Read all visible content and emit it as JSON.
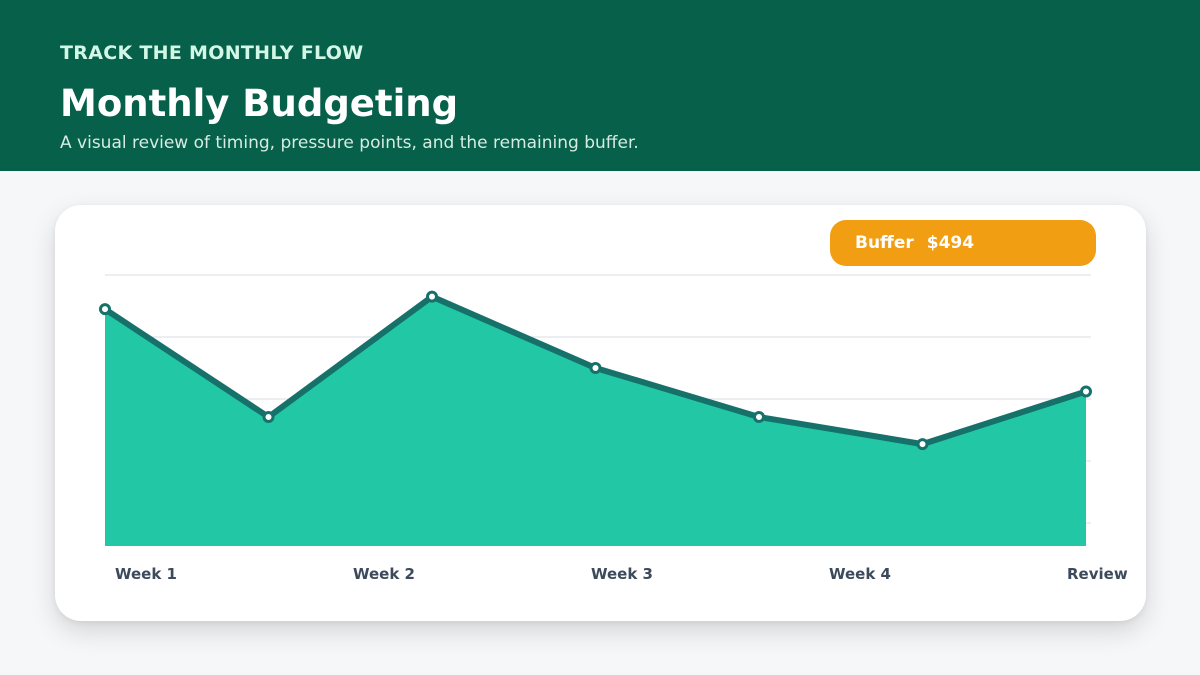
{
  "header": {
    "eyebrow": "TRACK THE MONTHLY FLOW",
    "title": "Monthly Budgeting",
    "subtitle": "A visual review of timing, pressure points, and the remaining buffer."
  },
  "badge": {
    "label": "Buffer",
    "value": "$494"
  },
  "colors": {
    "header_bg": "#06604a",
    "area_fill": "#22c7a5",
    "line": "#17716b",
    "badge": "#f29e12",
    "grid": "#d9dde3"
  },
  "chart_data": {
    "type": "area",
    "title": "",
    "xlabel": "",
    "ylabel": "",
    "x_tick_labels": [
      "Week 1",
      "Week 2",
      "Week 3",
      "Week 4",
      "Review"
    ],
    "values": [
      87.4,
      47.6,
      92.0,
      65.7,
      47.6,
      37.6,
      57.0
    ],
    "ylim": [
      0,
      100
    ],
    "grid": true,
    "y_tick_labels_visible": false,
    "legend": "none"
  }
}
